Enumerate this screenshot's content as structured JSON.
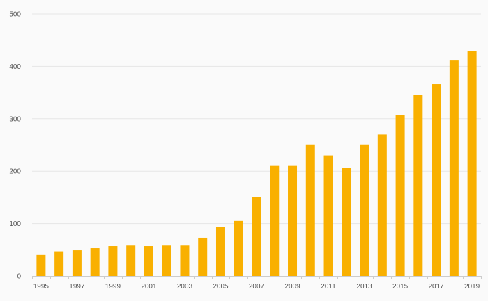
{
  "chart_data": {
    "type": "bar",
    "title": "",
    "xlabel": "",
    "ylabel": "",
    "categories": [
      "1995",
      "1996",
      "1997",
      "1998",
      "1999",
      "2000",
      "2001",
      "2002",
      "2003",
      "2004",
      "2005",
      "2006",
      "2007",
      "2008",
      "2009",
      "2010",
      "2011",
      "2012",
      "2013",
      "2014",
      "2015",
      "2016",
      "2017",
      "2018",
      "2019"
    ],
    "x_tick_labels": [
      "1995",
      "1997",
      "1999",
      "2001",
      "2003",
      "2005",
      "2007",
      "2009",
      "2011",
      "2013",
      "2015",
      "2017",
      "2019"
    ],
    "values": [
      40,
      47,
      49,
      53,
      57,
      58,
      57,
      58,
      58,
      73,
      93,
      105,
      150,
      210,
      210,
      251,
      230,
      206,
      251,
      270,
      307,
      345,
      366,
      411,
      429
    ],
    "ylim": [
      0,
      500
    ],
    "y_ticks": [
      0,
      100,
      200,
      300,
      400,
      500
    ],
    "grid": true,
    "legend": "none",
    "bar_color": "#f9b000"
  }
}
